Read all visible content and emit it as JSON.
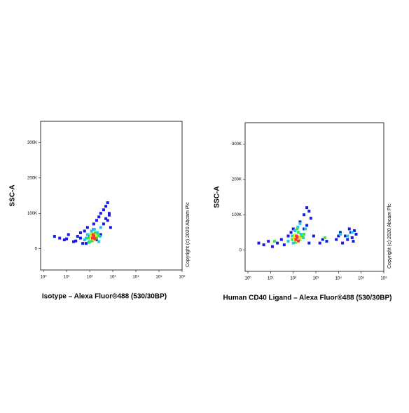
{
  "chart_data": [
    {
      "type": "scatter",
      "x_label": "Isotype – Alexa Fluor®488 (530/30BP)",
      "y_label": "SSC-A",
      "annotation": "Copyright (c) 2020 Abcam Plc",
      "log_x": true,
      "xlim": [
        0.75,
        1000000
      ],
      "ylim": [
        -60000,
        360000
      ],
      "xticks": [
        {
          "value": 1,
          "label": "10⁰"
        },
        {
          "value": 10,
          "label": "10¹"
        },
        {
          "value": 100,
          "label": "10²"
        },
        {
          "value": 1000,
          "label": "10³"
        },
        {
          "value": 10000,
          "label": "10⁴"
        },
        {
          "value": 100000,
          "label": "10⁵"
        },
        {
          "value": 1000000,
          "label": "10⁶"
        }
      ],
      "yticks": [
        0,
        {
          "value": 100000,
          "label": "100K"
        },
        {
          "value": 200000,
          "label": "200K"
        },
        {
          "value": 300000,
          "label": "300K"
        }
      ],
      "series": [
        {
          "color": "#1a1ae8",
          "x": [
            3,
            5,
            8,
            12,
            20,
            30,
            40,
            50,
            60,
            80,
            100,
            150,
            200,
            250,
            300,
            400,
            500,
            600,
            700,
            800,
            300,
            400,
            500,
            200,
            150,
            100,
            70,
            40,
            10,
            25,
            600,
            700
          ],
          "y": [
            35000,
            30000,
            25000,
            40000,
            20000,
            35000,
            45000,
            15000,
            50000,
            60000,
            20000,
            70000,
            80000,
            90000,
            100000,
            110000,
            120000,
            130000,
            100000,
            60000,
            40000,
            70000,
            85000,
            25000,
            55000,
            35000,
            15000,
            30000,
            28000,
            22000,
            80000,
            95000
          ]
        },
        {
          "color": "#1ec8e6",
          "x": [
            60,
            80,
            90,
            120,
            160,
            220,
            280,
            300,
            70,
            250
          ],
          "y": [
            25000,
            40000,
            18000,
            50000,
            55000,
            45000,
            35000,
            60000,
            30000,
            20000
          ]
        },
        {
          "color": "#3ce63c",
          "x": [
            90,
            110,
            130,
            170,
            200,
            240,
            100,
            150
          ],
          "y": [
            30000,
            40000,
            22000,
            45000,
            30000,
            38000,
            20000,
            35000
          ]
        },
        {
          "color": "#e6e632",
          "x": [
            110,
            140,
            180,
            120,
            160
          ],
          "y": [
            35000,
            28000,
            38000,
            42000,
            25000
          ]
        },
        {
          "color": "#ff3030",
          "x": [
            130,
            150,
            170,
            140
          ],
          "y": [
            30000,
            36000,
            28000,
            40000
          ]
        }
      ]
    },
    {
      "type": "scatter",
      "x_label": "Human CD40 Ligand – Alexa Fluor®488 (530/30BP)",
      "y_label": "SSC-A",
      "annotation": "Copyright (c) 2020 Abcam Plc",
      "log_x": true,
      "xlim": [
        0.75,
        1000000
      ],
      "ylim": [
        -60000,
        360000
      ],
      "xticks": [
        {
          "value": 1,
          "label": "10⁰"
        },
        {
          "value": 10,
          "label": "10¹"
        },
        {
          "value": 100,
          "label": "10²"
        },
        {
          "value": 1000,
          "label": "10³"
        },
        {
          "value": 10000,
          "label": "10⁴"
        },
        {
          "value": 100000,
          "label": "10⁵"
        },
        {
          "value": 1000000,
          "label": "10⁶"
        }
      ],
      "yticks": [
        0,
        {
          "value": 100000,
          "label": "100K"
        },
        {
          "value": 200000,
          "label": "200K"
        },
        {
          "value": 300000,
          "label": "300K"
        }
      ],
      "series": [
        {
          "color": "#1a1ae8",
          "x": [
            3,
            5,
            8,
            12,
            20,
            30,
            40,
            60,
            80,
            100,
            200,
            300,
            400,
            500,
            600,
            800,
            300,
            400,
            500,
            1500,
            3000,
            8000,
            12000,
            20000,
            30000,
            40000,
            50000,
            60000,
            15000,
            25000,
            35000,
            45000,
            10000,
            2000
          ],
          "y": [
            20000,
            15000,
            25000,
            10000,
            20000,
            30000,
            15000,
            40000,
            50000,
            60000,
            80000,
            100000,
            120000,
            110000,
            90000,
            40000,
            60000,
            70000,
            20000,
            20000,
            25000,
            30000,
            50000,
            40000,
            60000,
            35000,
            55000,
            45000,
            20000,
            30000,
            50000,
            25000,
            40000,
            30000
          ]
        },
        {
          "color": "#1ec8e6",
          "x": [
            60,
            90,
            120,
            160,
            220,
            280,
            350,
            100,
            200,
            12000,
            25000,
            40000
          ],
          "y": [
            25000,
            40000,
            55000,
            65000,
            45000,
            35000,
            60000,
            20000,
            75000,
            45000,
            40000,
            50000
          ]
        },
        {
          "color": "#3ce63c",
          "x": [
            15,
            90,
            110,
            130,
            170,
            200,
            240,
            300,
            150,
            2500
          ],
          "y": [
            25000,
            30000,
            40000,
            22000,
            50000,
            30000,
            38000,
            45000,
            60000,
            35000
          ]
        },
        {
          "color": "#e6e632",
          "x": [
            110,
            140,
            180,
            120,
            160,
            200
          ],
          "y": [
            35000,
            28000,
            38000,
            42000,
            25000,
            32000
          ]
        },
        {
          "color": "#ff3030",
          "x": [
            130,
            150,
            170,
            140
          ],
          "y": [
            30000,
            36000,
            26000,
            40000
          ]
        }
      ]
    }
  ]
}
